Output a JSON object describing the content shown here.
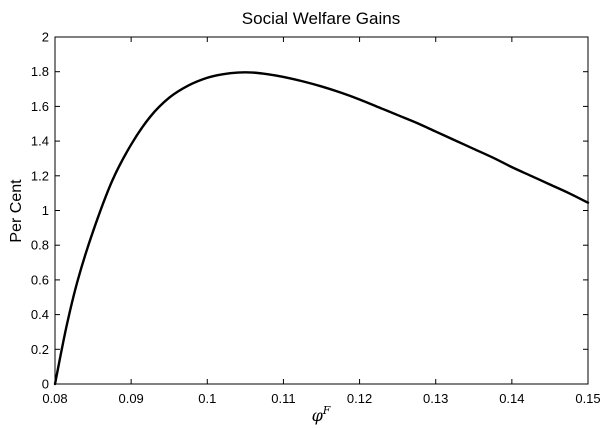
{
  "chart_data": {
    "type": "line",
    "title": "Social Welfare Gains",
    "xlabel": {
      "base": "φ",
      "sup": "F"
    },
    "ylabel": "Per Cent",
    "xlim": [
      0.08,
      0.15
    ],
    "ylim": [
      0,
      2
    ],
    "xticks": [
      "0.08",
      "0.09",
      "0.1",
      "0.11",
      "0.12",
      "0.13",
      "0.14",
      "0.15"
    ],
    "yticks": [
      "0",
      "0.2",
      "0.4",
      "0.6",
      "0.8",
      "1",
      "1.2",
      "1.4",
      "1.6",
      "1.8",
      "2"
    ],
    "grid": false,
    "series": [
      {
        "x": [
          0.08,
          0.0815,
          0.083,
          0.085,
          0.0875,
          0.09,
          0.0925,
          0.095,
          0.0975,
          0.1,
          0.102,
          0.104,
          0.106,
          0.108,
          0.11,
          0.1125,
          0.115,
          0.1175,
          0.12,
          0.1225,
          0.125,
          0.1275,
          0.13,
          0.1325,
          0.135,
          0.1375,
          0.14,
          0.1425,
          0.145,
          0.1475,
          0.15
        ],
        "y": [
          0.0,
          0.33,
          0.6,
          0.88,
          1.17,
          1.38,
          1.54,
          1.65,
          1.72,
          1.765,
          1.785,
          1.795,
          1.795,
          1.785,
          1.77,
          1.745,
          1.715,
          1.68,
          1.64,
          1.595,
          1.55,
          1.505,
          1.455,
          1.405,
          1.355,
          1.305,
          1.25,
          1.2,
          1.15,
          1.1,
          1.045
        ],
        "color": "#000000"
      }
    ]
  }
}
